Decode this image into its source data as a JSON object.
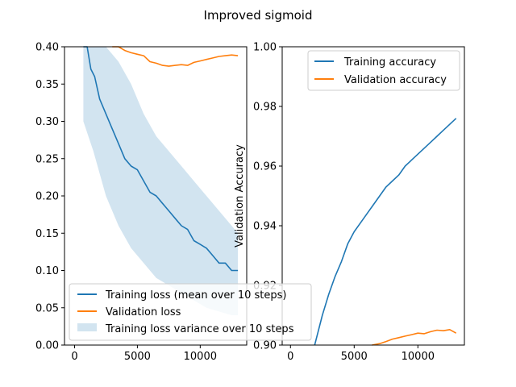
{
  "figure": {
    "suptitle": "Improved sigmoid"
  },
  "chart_data": [
    {
      "type": "line",
      "title": "",
      "xlabel": "",
      "ylabel": "",
      "xlim": [
        -800,
        13700
      ],
      "ylim": [
        0.0,
        0.4
      ],
      "x_ticks": [
        0,
        5000,
        10000
      ],
      "x_tick_labels": [
        "0",
        "5000",
        "10000"
      ],
      "y_ticks": [
        0.0,
        0.05,
        0.1,
        0.15,
        0.2,
        0.25,
        0.3,
        0.35,
        0.4
      ],
      "y_tick_labels": [
        "0.00",
        "0.05",
        "0.10",
        "0.15",
        "0.20",
        "0.25",
        "0.30",
        "0.35",
        "0.40"
      ],
      "grid": false,
      "legend_position": "lower-left",
      "series": [
        {
          "name": "Training loss (mean over 10 steps)",
          "color": "#1f77b4",
          "x": [
            700,
            1000,
            1300,
            1600,
            2000,
            2500,
            3000,
            3500,
            4000,
            4500,
            5000,
            5500,
            6000,
            6500,
            7000,
            7500,
            8000,
            8500,
            9000,
            9500,
            10000,
            10500,
            11000,
            11500,
            12000,
            12500,
            13000
          ],
          "values": [
            0.4,
            0.4,
            0.37,
            0.36,
            0.33,
            0.31,
            0.29,
            0.27,
            0.25,
            0.24,
            0.235,
            0.22,
            0.205,
            0.2,
            0.19,
            0.18,
            0.17,
            0.16,
            0.155,
            0.14,
            0.135,
            0.13,
            0.12,
            0.11,
            0.11,
            0.1,
            0.1
          ]
        },
        {
          "name": "Validation loss",
          "color": "#ff7f0e",
          "x": [
            3000,
            3500,
            4000,
            4500,
            5000,
            5500,
            6000,
            6500,
            7000,
            7500,
            8000,
            8500,
            9000,
            9500,
            10000,
            10500,
            11000,
            11500,
            12000,
            12500,
            13000
          ],
          "values": [
            0.405,
            0.4,
            0.395,
            0.392,
            0.39,
            0.388,
            0.38,
            0.378,
            0.375,
            0.374,
            0.375,
            0.376,
            0.375,
            0.379,
            0.381,
            0.383,
            0.385,
            0.387,
            0.388,
            0.389,
            0.388
          ]
        },
        {
          "name": "Training loss variance over 10 steps",
          "color": "#1f77b4",
          "kind": "band",
          "x": [
            700,
            1500,
            2500,
            3500,
            4500,
            5500,
            6500,
            7500,
            8500,
            9500,
            10500,
            11500,
            12500,
            13000
          ],
          "lower": [
            0.3,
            0.26,
            0.2,
            0.16,
            0.13,
            0.11,
            0.09,
            0.08,
            0.07,
            0.06,
            0.05,
            0.045,
            0.04,
            0.04
          ],
          "upper": [
            0.4,
            0.4,
            0.4,
            0.38,
            0.35,
            0.31,
            0.28,
            0.26,
            0.24,
            0.22,
            0.2,
            0.18,
            0.16,
            0.15
          ]
        }
      ]
    },
    {
      "type": "line",
      "title": "",
      "xlabel": "",
      "ylabel": "Validation Accuracy",
      "xlim": [
        -650,
        13650
      ],
      "ylim": [
        0.9,
        1.0
      ],
      "x_ticks": [
        0,
        5000,
        10000
      ],
      "x_tick_labels": [
        "0",
        "5000",
        "10000"
      ],
      "y_ticks": [
        0.9,
        0.92,
        0.94,
        0.96,
        0.98,
        1.0
      ],
      "y_tick_labels": [
        "0.90",
        "0.92",
        "0.94",
        "0.96",
        "0.98",
        "1.00"
      ],
      "grid": false,
      "legend_position": "upper-right",
      "series": [
        {
          "name": "Training accuracy",
          "color": "#1f77b4",
          "x": [
            1900,
            2500,
            3000,
            3500,
            4000,
            4500,
            5000,
            5500,
            6000,
            6500,
            7000,
            7500,
            8000,
            8500,
            9000,
            9500,
            10000,
            10500,
            11000,
            11500,
            12000,
            12500,
            13000
          ],
          "values": [
            0.9,
            0.91,
            0.917,
            0.923,
            0.928,
            0.934,
            0.938,
            0.941,
            0.944,
            0.947,
            0.95,
            0.953,
            0.955,
            0.957,
            0.96,
            0.962,
            0.964,
            0.966,
            0.968,
            0.97,
            0.972,
            0.974,
            0.976
          ]
        },
        {
          "name": "Validation accuracy",
          "color": "#ff7f0e",
          "x": [
            6400,
            7000,
            7500,
            8000,
            8500,
            9000,
            9500,
            10000,
            10500,
            11000,
            11500,
            12000,
            12500,
            13000
          ],
          "values": [
            0.9,
            0.9005,
            0.9012,
            0.902,
            0.9025,
            0.903,
            0.9035,
            0.904,
            0.9038,
            0.9045,
            0.905,
            0.9048,
            0.9052,
            0.904
          ]
        }
      ]
    }
  ]
}
